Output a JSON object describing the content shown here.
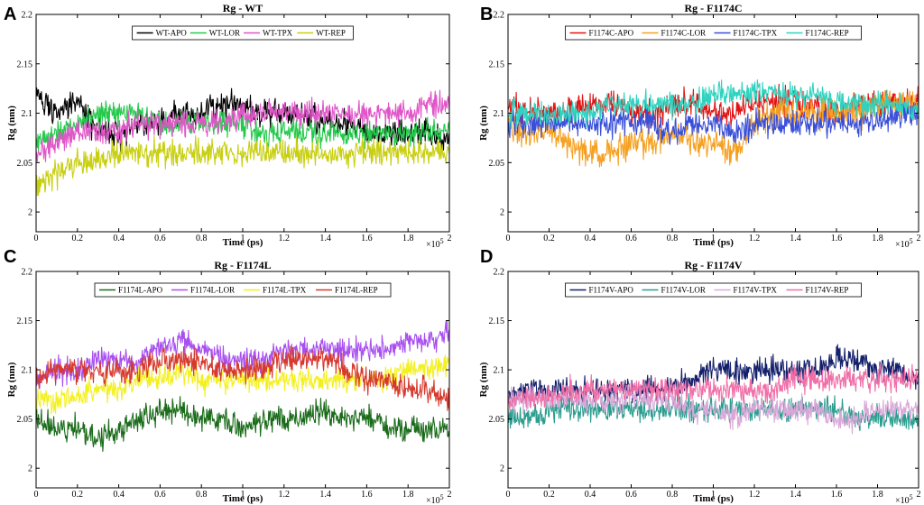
{
  "chart_data": [
    {
      "panel": "A",
      "type": "line",
      "title": "Rg - WT",
      "xlabel": "Time (ps)",
      "ylabel": "Rg (nm)",
      "xlim": [
        0,
        200000
      ],
      "ylim": [
        1.98,
        2.2
      ],
      "x_multiplier": "×10",
      "x_multiplier_exp": "5",
      "xticks": [
        0,
        20000,
        40000,
        60000,
        80000,
        100000,
        120000,
        140000,
        160000,
        180000,
        200000
      ],
      "xtick_labels": [
        "0",
        "0.2",
        "0.4",
        "0.6",
        "0.8",
        "1",
        "1.2",
        "1.4",
        "1.6",
        "1.8",
        "2"
      ],
      "yticks": [
        2,
        2.05,
        2.1,
        2.15,
        2.2
      ],
      "ytick_labels": [
        "2",
        "2.05",
        "2.1",
        "2.15",
        "2.2"
      ],
      "legend_position": "top-center",
      "x": [
        0,
        10000,
        20000,
        30000,
        40000,
        50000,
        60000,
        70000,
        80000,
        90000,
        100000,
        110000,
        120000,
        130000,
        140000,
        150000,
        160000,
        170000,
        180000,
        190000,
        200000
      ],
      "series": [
        {
          "name": "WT-APO",
          "color": "#000000",
          "amp": 0.012,
          "values": [
            2.12,
            2.1,
            2.11,
            2.08,
            2.08,
            2.09,
            2.09,
            2.1,
            2.1,
            2.11,
            2.11,
            2.1,
            2.1,
            2.1,
            2.09,
            2.09,
            2.08,
            2.08,
            2.08,
            2.08,
            2.07
          ]
        },
        {
          "name": "WT-LOR",
          "color": "#22c94a",
          "amp": 0.011,
          "values": [
            2.07,
            2.08,
            2.09,
            2.1,
            2.1,
            2.1,
            2.09,
            2.09,
            2.09,
            2.09,
            2.09,
            2.08,
            2.08,
            2.08,
            2.08,
            2.08,
            2.08,
            2.08,
            2.08,
            2.08,
            2.08
          ]
        },
        {
          "name": "WT-TPX",
          "color": "#e055c8",
          "amp": 0.011,
          "values": [
            2.06,
            2.07,
            2.08,
            2.08,
            2.08,
            2.09,
            2.09,
            2.09,
            2.09,
            2.09,
            2.1,
            2.1,
            2.1,
            2.1,
            2.1,
            2.1,
            2.1,
            2.1,
            2.1,
            2.11,
            2.11
          ]
        },
        {
          "name": "WT-REP",
          "color": "#c8cf10",
          "amp": 0.011,
          "values": [
            2.03,
            2.04,
            2.05,
            2.05,
            2.06,
            2.06,
            2.06,
            2.06,
            2.06,
            2.06,
            2.06,
            2.06,
            2.06,
            2.06,
            2.06,
            2.06,
            2.06,
            2.06,
            2.06,
            2.06,
            2.06
          ]
        }
      ]
    },
    {
      "panel": "B",
      "type": "line",
      "title": "Rg - F1174C",
      "xlabel": "Time (ps)",
      "ylabel": "Rg (nm)",
      "xlim": [
        0,
        200000
      ],
      "ylim": [
        1.98,
        2.2
      ],
      "x_multiplier": "×10",
      "x_multiplier_exp": "5",
      "xticks": [
        0,
        20000,
        40000,
        60000,
        80000,
        100000,
        120000,
        140000,
        160000,
        180000,
        200000
      ],
      "xtick_labels": [
        "0",
        "0.2",
        "0.4",
        "0.6",
        "0.8",
        "1",
        "1.2",
        "1.4",
        "1.6",
        "1.8",
        "2"
      ],
      "yticks": [
        2,
        2.05,
        2.1,
        2.15,
        2.2
      ],
      "ytick_labels": [
        "2",
        "2.05",
        "2.1",
        "2.15",
        "2.2"
      ],
      "legend_position": "top-center",
      "x": [
        0,
        10000,
        20000,
        30000,
        40000,
        50000,
        60000,
        70000,
        80000,
        90000,
        100000,
        110000,
        120000,
        130000,
        140000,
        150000,
        160000,
        170000,
        180000,
        190000,
        200000
      ],
      "series": [
        {
          "name": "F1174C-APO",
          "color": "#e01414",
          "amp": 0.012,
          "values": [
            2.11,
            2.1,
            2.1,
            2.1,
            2.11,
            2.11,
            2.1,
            2.1,
            2.11,
            2.11,
            2.1,
            2.1,
            2.11,
            2.11,
            2.11,
            2.11,
            2.1,
            2.11,
            2.11,
            2.11,
            2.11
          ]
        },
        {
          "name": "F1174C-LOR",
          "color": "#f5a020",
          "amp": 0.013,
          "values": [
            2.09,
            2.08,
            2.08,
            2.07,
            2.06,
            2.06,
            2.07,
            2.07,
            2.08,
            2.07,
            2.07,
            2.06,
            2.09,
            2.1,
            2.1,
            2.1,
            2.1,
            2.1,
            2.11,
            2.11,
            2.11
          ]
        },
        {
          "name": "F1174C-TPX",
          "color": "#3a4fd8",
          "amp": 0.011,
          "values": [
            2.09,
            2.09,
            2.09,
            2.09,
            2.09,
            2.09,
            2.09,
            2.09,
            2.08,
            2.09,
            2.09,
            2.08,
            2.09,
            2.09,
            2.09,
            2.09,
            2.09,
            2.09,
            2.09,
            2.1,
            2.1
          ]
        },
        {
          "name": "F1174C-REP",
          "color": "#2fd3c0",
          "amp": 0.011,
          "values": [
            2.1,
            2.1,
            2.1,
            2.1,
            2.1,
            2.11,
            2.11,
            2.11,
            2.11,
            2.11,
            2.12,
            2.12,
            2.12,
            2.12,
            2.12,
            2.12,
            2.11,
            2.11,
            2.11,
            2.11,
            2.1
          ]
        }
      ]
    },
    {
      "panel": "C",
      "type": "line",
      "title": "Rg - F1174L",
      "xlabel": "Time (ps)",
      "ylabel": "Rg (nm)",
      "xlim": [
        0,
        200000
      ],
      "ylim": [
        1.98,
        2.2
      ],
      "x_multiplier": "×10",
      "x_multiplier_exp": "5",
      "xticks": [
        0,
        20000,
        40000,
        60000,
        80000,
        100000,
        120000,
        140000,
        160000,
        180000,
        200000
      ],
      "xtick_labels": [
        "0",
        "0.2",
        "0.4",
        "0.6",
        "0.8",
        "1",
        "1.2",
        "1.4",
        "1.6",
        "1.8",
        "2"
      ],
      "yticks": [
        2,
        2.05,
        2.1,
        2.15,
        2.2
      ],
      "ytick_labels": [
        "2",
        "2.05",
        "2.1",
        "2.15",
        "2.2"
      ],
      "legend_position": "top-center",
      "x": [
        0,
        10000,
        20000,
        30000,
        40000,
        50000,
        60000,
        70000,
        80000,
        90000,
        100000,
        110000,
        120000,
        130000,
        140000,
        150000,
        160000,
        170000,
        180000,
        190000,
        200000
      ],
      "series": [
        {
          "name": "F1174L-APO",
          "color": "#1a6b1a",
          "amp": 0.011,
          "values": [
            2.05,
            2.04,
            2.04,
            2.03,
            2.04,
            2.05,
            2.06,
            2.06,
            2.05,
            2.05,
            2.04,
            2.05,
            2.05,
            2.05,
            2.06,
            2.05,
            2.05,
            2.04,
            2.04,
            2.04,
            2.04
          ]
        },
        {
          "name": "F1174L-LOR",
          "color": "#a84ff0",
          "amp": 0.011,
          "values": [
            2.09,
            2.1,
            2.1,
            2.11,
            2.11,
            2.11,
            2.12,
            2.13,
            2.12,
            2.11,
            2.11,
            2.11,
            2.12,
            2.12,
            2.12,
            2.12,
            2.12,
            2.12,
            2.13,
            2.13,
            2.14
          ]
        },
        {
          "name": "F1174L-TPX",
          "color": "#f3f020",
          "amp": 0.011,
          "values": [
            2.07,
            2.07,
            2.07,
            2.08,
            2.08,
            2.09,
            2.09,
            2.1,
            2.09,
            2.09,
            2.09,
            2.09,
            2.09,
            2.09,
            2.09,
            2.09,
            2.09,
            2.09,
            2.1,
            2.1,
            2.11
          ]
        },
        {
          "name": "F1174L-REP",
          "color": "#d63a2e",
          "amp": 0.011,
          "values": [
            2.09,
            2.1,
            2.1,
            2.1,
            2.1,
            2.1,
            2.11,
            2.11,
            2.11,
            2.1,
            2.1,
            2.1,
            2.11,
            2.11,
            2.11,
            2.1,
            2.09,
            2.09,
            2.08,
            2.08,
            2.07
          ]
        }
      ]
    },
    {
      "panel": "D",
      "type": "line",
      "title": "Rg - F1174V",
      "xlabel": "Time (ps)",
      "ylabel": "Rg (nm)",
      "xlim": [
        0,
        200000
      ],
      "ylim": [
        1.98,
        2.2
      ],
      "x_multiplier": "×10",
      "x_multiplier_exp": "5",
      "xticks": [
        0,
        20000,
        40000,
        60000,
        80000,
        100000,
        120000,
        140000,
        160000,
        180000,
        200000
      ],
      "xtick_labels": [
        "0",
        "0.2",
        "0.4",
        "0.6",
        "0.8",
        "1",
        "1.2",
        "1.4",
        "1.6",
        "1.8",
        "2"
      ],
      "yticks": [
        2,
        2.05,
        2.1,
        2.15,
        2.2
      ],
      "ytick_labels": [
        "2",
        "2.05",
        "2.1",
        "2.15",
        "2.2"
      ],
      "legend_position": "top-center",
      "x": [
        0,
        10000,
        20000,
        30000,
        40000,
        50000,
        60000,
        70000,
        80000,
        90000,
        100000,
        110000,
        120000,
        130000,
        140000,
        150000,
        160000,
        170000,
        180000,
        190000,
        200000
      ],
      "series": [
        {
          "name": "F1174V-APO",
          "color": "#14206b",
          "amp": 0.011,
          "values": [
            2.07,
            2.08,
            2.08,
            2.08,
            2.08,
            2.08,
            2.08,
            2.08,
            2.08,
            2.09,
            2.1,
            2.1,
            2.1,
            2.1,
            2.1,
            2.1,
            2.11,
            2.11,
            2.1,
            2.1,
            2.09
          ]
        },
        {
          "name": "F1174V-LOR",
          "color": "#2a9d8f",
          "amp": 0.011,
          "values": [
            2.05,
            2.05,
            2.06,
            2.06,
            2.06,
            2.06,
            2.06,
            2.06,
            2.06,
            2.06,
            2.06,
            2.06,
            2.06,
            2.06,
            2.06,
            2.06,
            2.06,
            2.05,
            2.05,
            2.05,
            2.05
          ]
        },
        {
          "name": "F1174V-TPX",
          "color": "#d9a8d8",
          "amp": 0.011,
          "values": [
            2.07,
            2.07,
            2.07,
            2.07,
            2.07,
            2.07,
            2.07,
            2.07,
            2.07,
            2.06,
            2.06,
            2.05,
            2.06,
            2.06,
            2.06,
            2.06,
            2.05,
            2.05,
            2.06,
            2.06,
            2.06
          ]
        },
        {
          "name": "F1174V-REP",
          "color": "#f06fa8",
          "amp": 0.011,
          "values": [
            2.07,
            2.07,
            2.07,
            2.08,
            2.08,
            2.08,
            2.08,
            2.08,
            2.08,
            2.08,
            2.08,
            2.08,
            2.08,
            2.08,
            2.09,
            2.09,
            2.09,
            2.09,
            2.09,
            2.09,
            2.09
          ]
        }
      ]
    }
  ]
}
